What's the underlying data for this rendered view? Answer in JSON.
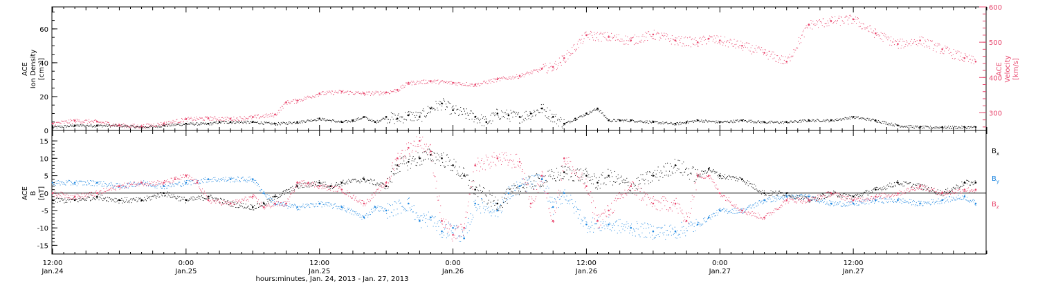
{
  "chart_data": [
    {
      "type": "scatter",
      "title": "",
      "xlabel": "hours:minutes, Jan. 24, 2013 - Jan. 27, 2013",
      "ylabel": {
        "lines": [
          "ACE",
          "Ion Density",
          "[cm⁻³]"
        ]
      },
      "y2label": {
        "lines": [
          "ACE",
          "Velocity",
          "[km/s]"
        ]
      },
      "xlim_hours": [
        0,
        84
      ],
      "ylim": [
        0,
        73
      ],
      "y2lim": [
        250,
        600
      ],
      "yticks": [
        0,
        20,
        40,
        60
      ],
      "y2ticks": [
        300,
        400,
        500,
        600
      ],
      "grid": false,
      "series": [
        {
          "name": "",
          "axis": "left",
          "color": "#000000",
          "x": [
            0,
            2,
            4,
            6,
            8,
            10,
            12,
            14,
            15,
            16,
            18,
            20,
            22,
            24,
            26,
            27,
            28,
            29,
            30,
            31,
            32,
            33,
            34,
            35,
            36,
            38,
            39,
            40,
            41,
            42,
            43,
            44,
            45,
            46,
            47,
            48,
            49,
            50,
            51,
            52,
            54,
            56,
            57,
            58,
            60,
            62,
            64,
            66,
            68,
            70,
            72,
            74,
            76,
            78,
            80,
            82,
            83
          ],
          "y": [
            2,
            3,
            3,
            3,
            2,
            3,
            4,
            4,
            5,
            5,
            5,
            4,
            5,
            7,
            5,
            6,
            8,
            5,
            8,
            7,
            9,
            8,
            13,
            16,
            12,
            8,
            5,
            10,
            9,
            8,
            10,
            13,
            8,
            4,
            7,
            10,
            13,
            6,
            6,
            6,
            5,
            4,
            5,
            6,
            5,
            6,
            5,
            5,
            6,
            6,
            8,
            6,
            3,
            2,
            2,
            2,
            2
          ]
        },
        {
          "name": "",
          "axis": "right",
          "color": "#e8456c",
          "x": [
            0,
            2,
            4,
            6,
            8,
            10,
            12,
            14,
            16,
            18,
            20,
            21,
            22,
            24,
            26,
            28,
            30,
            31,
            32,
            34,
            36,
            38,
            40,
            42,
            44,
            45,
            46,
            48,
            50,
            52,
            54,
            56,
            58,
            59,
            60,
            62,
            64,
            66,
            68,
            70,
            72,
            74,
            76,
            78,
            80,
            82,
            83
          ],
          "y": [
            270,
            278,
            275,
            265,
            262,
            270,
            282,
            285,
            283,
            288,
            295,
            330,
            335,
            355,
            360,
            355,
            358,
            365,
            385,
            390,
            385,
            380,
            395,
            405,
            425,
            430,
            455,
            520,
            515,
            505,
            522,
            505,
            500,
            510,
            505,
            490,
            470,
            445,
            550,
            560,
            565,
            525,
            495,
            505,
            480,
            455,
            445
          ]
        }
      ]
    },
    {
      "type": "scatter",
      "title": "",
      "xlabel": "hours:minutes, Jan. 24, 2013 - Jan. 27, 2013",
      "ylabel": {
        "lines": [
          "ACE",
          "B",
          "[nT]"
        ]
      },
      "xlim_hours": [
        0,
        84
      ],
      "ylim": [
        -17.5,
        18
      ],
      "yticks": [
        -15,
        -10,
        -5,
        0,
        5,
        10,
        15
      ],
      "zero_line": true,
      "legend_position": "right",
      "grid": false,
      "series": [
        {
          "name": "Bx",
          "legend_main": "B",
          "legend_sub": "x",
          "color": "#000000",
          "x": [
            0,
            2,
            4,
            6,
            8,
            10,
            12,
            14,
            16,
            18,
            19,
            20,
            22,
            24,
            25,
            26,
            28,
            30,
            31,
            32,
            33,
            34,
            35,
            36,
            37,
            38,
            40,
            42,
            44,
            46,
            48,
            49,
            50,
            52,
            54,
            56,
            58,
            59,
            60,
            62,
            64,
            66,
            68,
            70,
            72,
            74,
            76,
            78,
            80,
            82,
            83
          ],
          "y": [
            -2,
            -2,
            -1,
            -2,
            -2,
            0,
            -2,
            -1,
            -3,
            -4,
            -3,
            -1,
            2,
            3,
            2,
            3,
            4,
            2,
            8,
            9,
            10,
            11,
            10,
            8,
            5,
            1,
            -3,
            2,
            4,
            6,
            5,
            3,
            5,
            2,
            5,
            8,
            5,
            7,
            5,
            4,
            0,
            0,
            -2,
            0,
            -1,
            1,
            3,
            2,
            0,
            3,
            3
          ]
        },
        {
          "name": "By",
          "legend_main": "B",
          "legend_sub": "y",
          "color": "#1f87e0",
          "x": [
            0,
            2,
            4,
            6,
            8,
            10,
            12,
            14,
            16,
            18,
            19,
            20,
            22,
            24,
            26,
            28,
            29,
            30,
            32,
            33,
            34,
            35,
            36,
            37,
            38,
            40,
            41,
            42,
            44,
            45,
            46,
            48,
            50,
            52,
            54,
            56,
            58,
            59,
            60,
            62,
            64,
            66,
            68,
            70,
            72,
            74,
            76,
            78,
            80,
            82,
            83
          ],
          "y": [
            3,
            3,
            3,
            2,
            3,
            2,
            3,
            4,
            4,
            4,
            0,
            -3,
            -4,
            -3,
            -4,
            -7,
            -4,
            -5,
            -3,
            -8,
            -7,
            -11,
            -10,
            -13,
            -3,
            -5,
            0,
            2,
            4,
            -4,
            0,
            -9,
            -9,
            -10,
            -11,
            -11,
            -9,
            -7,
            -5,
            -5,
            -2,
            -1,
            -1,
            -3,
            -3,
            -2,
            -2,
            -3,
            -2,
            -1,
            -3
          ]
        },
        {
          "name": "Bz",
          "legend_main": "B",
          "legend_sub": "z",
          "color": "#e8456c",
          "x": [
            0,
            2,
            4,
            6,
            8,
            10,
            11,
            12,
            13,
            14,
            16,
            18,
            19,
            20,
            21,
            22,
            23,
            24,
            26,
            28,
            30,
            31,
            32,
            33,
            34,
            35,
            36,
            37,
            38,
            40,
            42,
            43,
            44,
            45,
            46,
            48,
            49,
            50,
            52,
            54,
            56,
            57,
            58,
            59,
            60,
            62,
            64,
            66,
            68,
            70,
            72,
            74,
            76,
            78,
            80,
            82,
            83
          ],
          "y": [
            0,
            -1,
            0,
            2,
            3,
            3,
            4,
            5,
            3,
            -2,
            -3,
            -1,
            -4,
            -3,
            -3,
            3,
            3,
            2,
            1,
            -3,
            3,
            10,
            13,
            15,
            12,
            -8,
            -12,
            -10,
            8,
            10,
            9,
            -3,
            5,
            -8,
            10,
            2,
            -8,
            -5,
            2,
            -3,
            -3,
            -8,
            5,
            5,
            0,
            -5,
            -7,
            -2,
            -2,
            0,
            -2,
            -1,
            0,
            2,
            0,
            1,
            1
          ]
        }
      ]
    }
  ],
  "x_axis": {
    "ticks": [
      {
        "hour": 0,
        "time": "12:00",
        "date": "Jan.24"
      },
      {
        "hour": 12,
        "time": "0:00",
        "date": "Jan.25"
      },
      {
        "hour": 24,
        "time": "12:00",
        "date": "Jan.25"
      },
      {
        "hour": 36,
        "time": "0:00",
        "date": "Jan.26"
      },
      {
        "hour": 48,
        "time": "12:00",
        "date": "Jan.26"
      },
      {
        "hour": 60,
        "time": "0:00",
        "date": "Jan.27"
      },
      {
        "hour": 72,
        "time": "12:00",
        "date": "Jan.27"
      }
    ],
    "label": "hours:minutes, Jan. 24, 2013 - Jan. 27, 2013"
  }
}
